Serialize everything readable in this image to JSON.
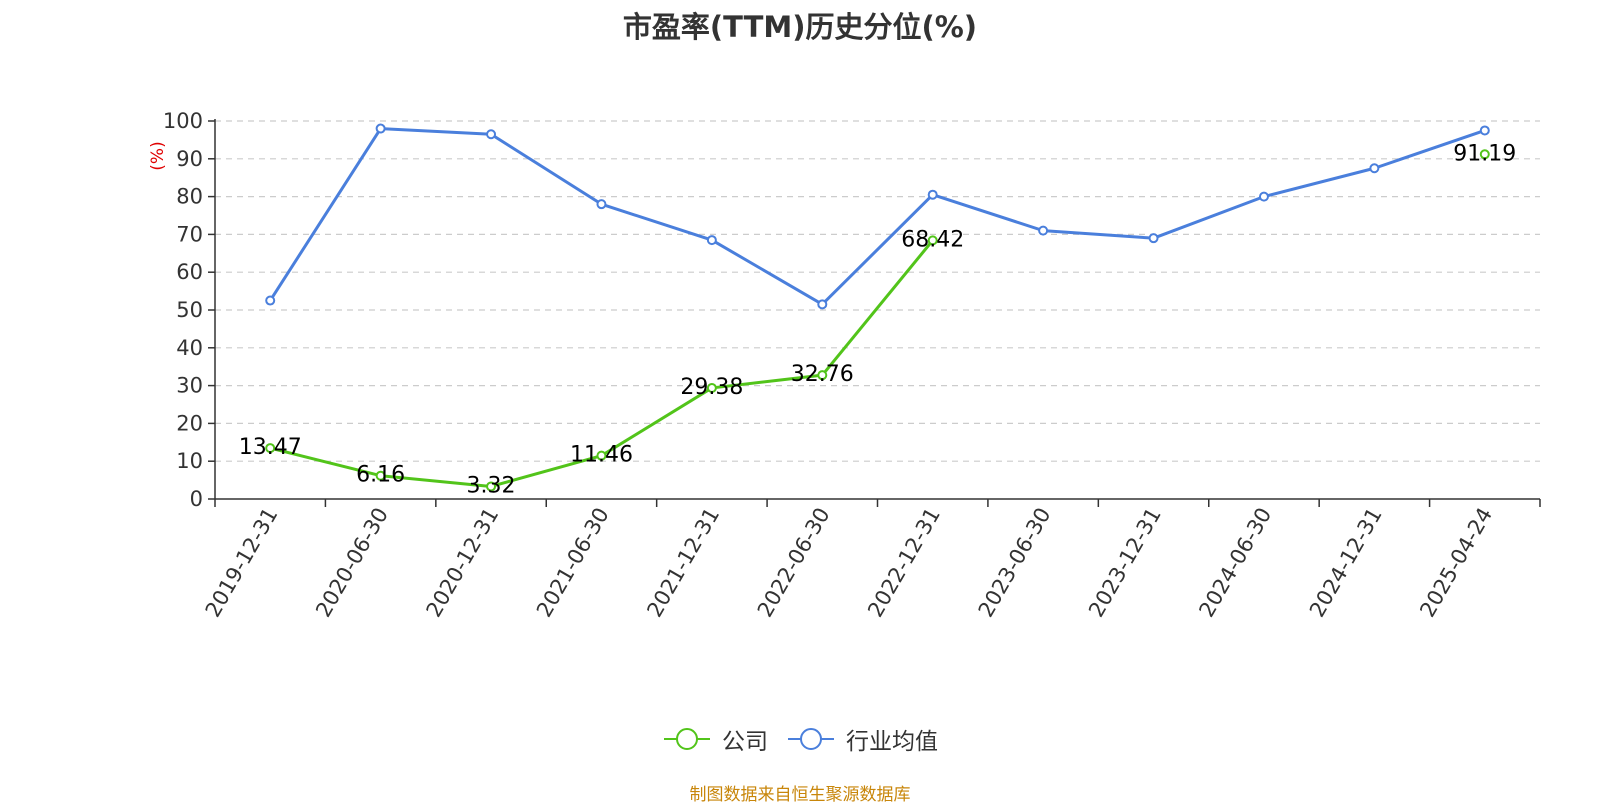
{
  "chart_data": {
    "type": "line",
    "title": "市盈率(TTM)历史分位(%)",
    "ylabel": "(%)",
    "xlabel": "",
    "ylim": [
      0,
      100
    ],
    "yticks": [
      0,
      10,
      20,
      30,
      40,
      50,
      60,
      70,
      80,
      90,
      100
    ],
    "grid": true,
    "legend_position": "bottom",
    "categories": [
      "2019-12-31",
      "2020-06-30",
      "2020-12-31",
      "2021-06-30",
      "2021-12-31",
      "2022-06-30",
      "2022-12-31",
      "2023-06-30",
      "2023-12-31",
      "2024-06-30",
      "2024-12-31",
      "2025-04-24"
    ],
    "series": [
      {
        "name": "公司",
        "color": "#52c41a",
        "values": [
          13.47,
          6.16,
          3.32,
          11.46,
          29.38,
          32.76,
          68.42,
          null,
          null,
          null,
          null,
          91.19
        ],
        "labels": [
          "13.47",
          "6.16",
          "3.32",
          "11.46",
          "29.38",
          "32.76",
          "68.42",
          "",
          "",
          "",
          "",
          "91.19"
        ]
      },
      {
        "name": "行业均值",
        "color": "#4a7fdc",
        "values": [
          52.5,
          98,
          96.5,
          78,
          68.5,
          51.5,
          80.5,
          71,
          69,
          80,
          87.5,
          97.5
        ]
      }
    ]
  },
  "legend": {
    "company": "公司",
    "industry": "行业均值"
  },
  "source": {
    "text": "制图数据来自恒生聚源数据库",
    "color": "#c8860a"
  },
  "ylabel_color": "#e00000"
}
